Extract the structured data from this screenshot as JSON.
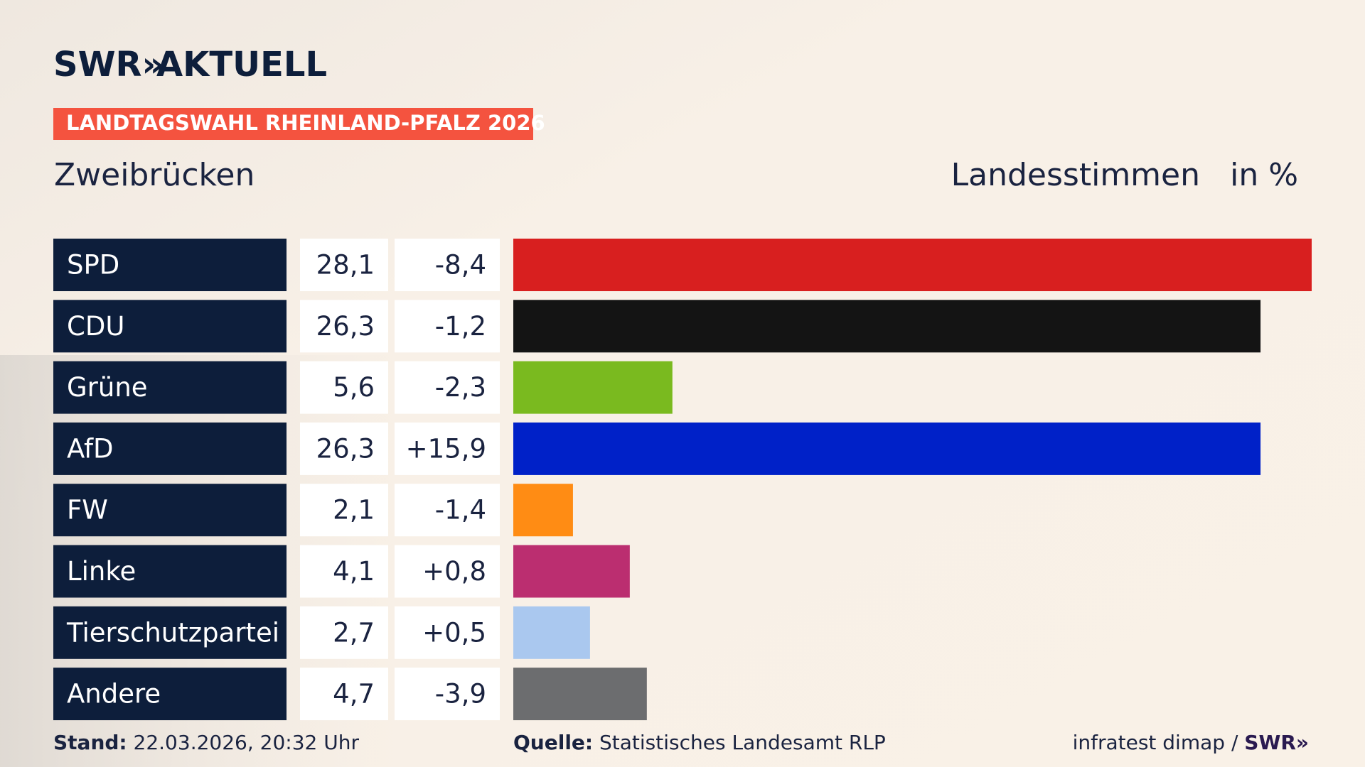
{
  "brand": {
    "logo": "SWR»",
    "name": "AKTUELL"
  },
  "chart_data": {
    "type": "bar",
    "title": "LANDTAGSWAHL RHEINLAND-PFALZ 2026",
    "subtitle": "Zweibrücken",
    "value_label": "Landesstimmen",
    "unit": "in %",
    "categories": [
      "SPD",
      "CDU",
      "Grüne",
      "AfD",
      "FW",
      "Linke",
      "Tierschutzpartei",
      "Andere"
    ],
    "values": [
      28.1,
      26.3,
      5.6,
      26.3,
      2.1,
      4.1,
      2.7,
      4.7
    ],
    "value_labels": [
      "28,1",
      "26,3",
      "5,6",
      "26,3",
      "2,1",
      "4,1",
      "2,7",
      "4,7"
    ],
    "changes": [
      -8.4,
      -1.2,
      -2.3,
      15.9,
      -1.4,
      0.8,
      0.5,
      -3.9
    ],
    "change_labels": [
      "-8,4",
      "-1,2",
      "-2,3",
      "+15,9",
      "-1,4",
      "+0,8",
      "+0,5",
      "-3,9"
    ],
    "colors": [
      "#d81f1f",
      "#141414",
      "#7aba1f",
      "#0021c8",
      "#ff8c14",
      "#bb2e70",
      "#aac8ef",
      "#6c6d6f"
    ]
  },
  "footer": {
    "stand_label": "Stand:",
    "stand": "22.03.2026, 20:32 Uhr",
    "source_label": "Quelle:",
    "source": "Statistisches Landesamt RLP",
    "credit": "infratest dimap /",
    "credit_logo": "SWR»"
  }
}
